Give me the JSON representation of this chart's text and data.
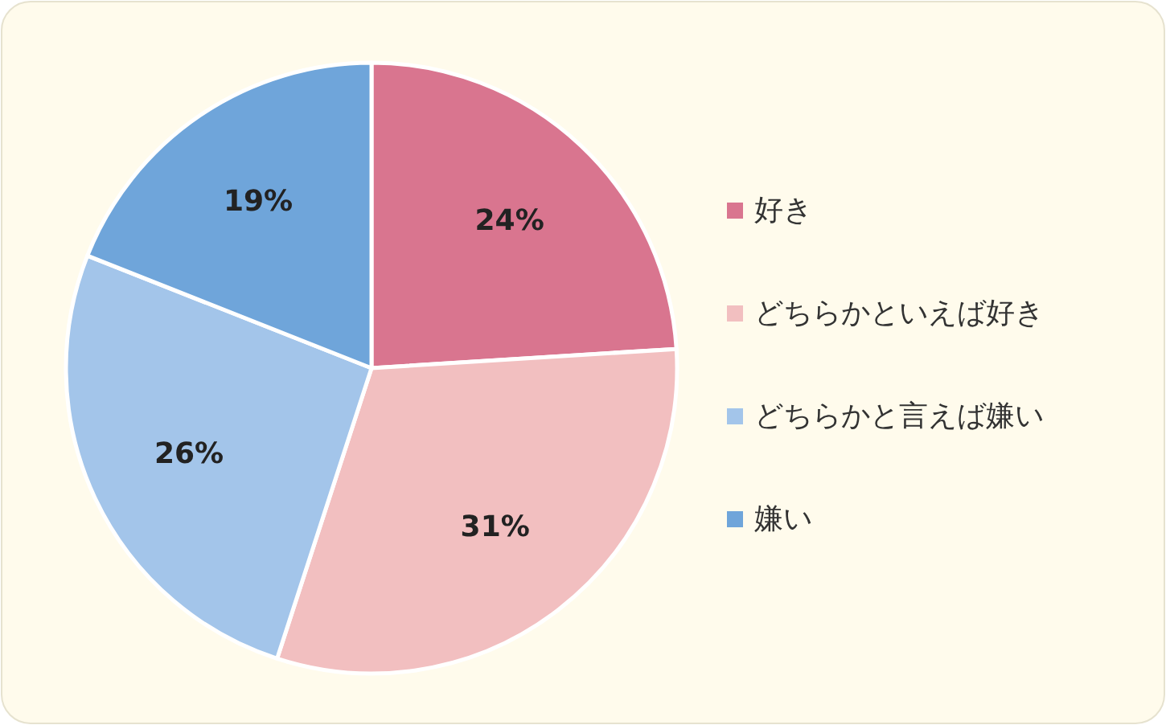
{
  "chart_data": {
    "type": "pie",
    "categories": [
      "好き",
      "どちらかといえば好き",
      "どちらかと言えば嫌い",
      "嫌い"
    ],
    "values": [
      24,
      31,
      26,
      19
    ],
    "colors": [
      "#d9758f",
      "#f2bfc0",
      "#a3c5ea",
      "#6fa5da"
    ],
    "value_labels": [
      "24%",
      "31%",
      "26%",
      "19%"
    ],
    "legend": "right"
  }
}
